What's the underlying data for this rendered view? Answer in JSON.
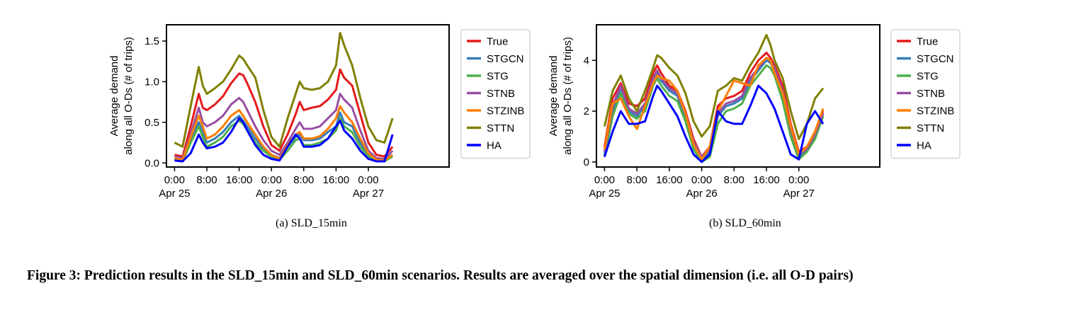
{
  "colors": {
    "True": "#e41a1c",
    "STGCN": "#377eb8",
    "STG": "#4daf4a",
    "STNB": "#984ea3",
    "STZINB": "#ff7f00",
    "STTN": "#808000",
    "HA": "#0000ff"
  },
  "chart_data": [
    {
      "type": "line",
      "caption": "(a)  SLD_15min",
      "ylabel_line1": "Average demand",
      "ylabel_line2": "along all O-Ds (# of trips)",
      "xlabel": "",
      "x_unit": "hours since Apr 25 0:00",
      "xlim": [
        -2,
        68
      ],
      "ylim": [
        -0.05,
        1.7
      ],
      "y_ticks": [
        0.0,
        0.5,
        1.0,
        1.5
      ],
      "y_tick_labels": [
        "0.0",
        "0.5",
        "1.0",
        "1.5"
      ],
      "x_ticks": [
        0,
        8,
        16,
        24,
        32,
        40,
        48
      ],
      "x_tick_labels": [
        "0:00\nApr 25",
        "8:00",
        "16:00",
        "0:00\nApr 26",
        "8:00",
        "16:00",
        "0:00\nApr 27"
      ],
      "grid": false,
      "legend_position": "outside-right",
      "x": [
        0,
        2,
        4,
        6,
        7,
        8,
        10,
        12,
        14,
        16,
        17,
        18,
        20,
        22,
        24,
        26,
        28,
        30,
        31,
        32,
        34,
        36,
        38,
        40,
        41,
        42,
        44,
        46,
        48,
        50,
        52,
        54
      ],
      "series": [
        {
          "name": "True",
          "values": [
            0.1,
            0.08,
            0.45,
            0.85,
            0.68,
            0.65,
            0.72,
            0.82,
            0.98,
            1.1,
            1.08,
            0.98,
            0.75,
            0.45,
            0.22,
            0.15,
            0.35,
            0.6,
            0.75,
            0.65,
            0.68,
            0.7,
            0.78,
            0.9,
            1.15,
            1.05,
            0.95,
            0.6,
            0.25,
            0.1,
            0.08,
            0.2
          ]
        },
        {
          "name": "STGCN",
          "values": [
            0.05,
            0.03,
            0.28,
            0.5,
            0.38,
            0.25,
            0.3,
            0.38,
            0.5,
            0.58,
            0.52,
            0.45,
            0.3,
            0.18,
            0.1,
            0.06,
            0.2,
            0.32,
            0.35,
            0.28,
            0.28,
            0.3,
            0.38,
            0.45,
            0.62,
            0.5,
            0.45,
            0.25,
            0.1,
            0.05,
            0.04,
            0.1
          ]
        },
        {
          "name": "STG",
          "values": [
            0.04,
            0.02,
            0.25,
            0.45,
            0.32,
            0.2,
            0.25,
            0.32,
            0.45,
            0.52,
            0.48,
            0.4,
            0.25,
            0.15,
            0.08,
            0.04,
            0.15,
            0.28,
            0.3,
            0.22,
            0.22,
            0.25,
            0.3,
            0.4,
            0.55,
            0.45,
            0.38,
            0.2,
            0.08,
            0.03,
            0.02,
            0.08
          ]
        },
        {
          "name": "STNB",
          "values": [
            0.08,
            0.06,
            0.35,
            0.68,
            0.5,
            0.45,
            0.5,
            0.58,
            0.72,
            0.8,
            0.75,
            0.65,
            0.45,
            0.28,
            0.15,
            0.1,
            0.25,
            0.42,
            0.5,
            0.42,
            0.42,
            0.45,
            0.55,
            0.65,
            0.85,
            0.78,
            0.68,
            0.4,
            0.15,
            0.06,
            0.05,
            0.15
          ]
        },
        {
          "name": "STZINB",
          "values": [
            0.06,
            0.04,
            0.32,
            0.58,
            0.45,
            0.3,
            0.35,
            0.45,
            0.58,
            0.65,
            0.58,
            0.5,
            0.35,
            0.2,
            0.1,
            0.05,
            0.22,
            0.35,
            0.38,
            0.3,
            0.3,
            0.33,
            0.42,
            0.55,
            0.7,
            0.62,
            0.5,
            0.3,
            0.12,
            0.04,
            0.03,
            0.1
          ]
        },
        {
          "name": "STTN",
          "values": [
            0.25,
            0.2,
            0.7,
            1.18,
            0.95,
            0.85,
            0.92,
            1.0,
            1.15,
            1.32,
            1.28,
            1.2,
            1.05,
            0.65,
            0.32,
            0.2,
            0.55,
            0.85,
            1.0,
            0.92,
            0.9,
            0.92,
            1.0,
            1.2,
            1.6,
            1.45,
            1.2,
            0.8,
            0.45,
            0.28,
            0.25,
            0.55
          ]
        },
        {
          "name": "HA",
          "values": [
            0.03,
            0.02,
            0.12,
            0.35,
            0.25,
            0.18,
            0.2,
            0.25,
            0.38,
            0.55,
            0.5,
            0.4,
            0.22,
            0.1,
            0.05,
            0.03,
            0.2,
            0.35,
            0.3,
            0.2,
            0.2,
            0.22,
            0.3,
            0.45,
            0.52,
            0.4,
            0.3,
            0.15,
            0.05,
            0.02,
            0.02,
            0.35
          ]
        }
      ]
    },
    {
      "type": "line",
      "caption": "(b)  SLD_60min",
      "ylabel_line1": "Average demand",
      "ylabel_line2": "along all O-Ds (# of trips)",
      "xlabel": "",
      "x_unit": "hours since Apr 25 0:00",
      "xlim": [
        -2,
        68
      ],
      "ylim": [
        -0.2,
        5.4
      ],
      "y_ticks": [
        0,
        2,
        4
      ],
      "y_tick_labels": [
        "0",
        "2",
        "4"
      ],
      "x_ticks": [
        0,
        8,
        16,
        24,
        32,
        40,
        48
      ],
      "x_tick_labels": [
        "0:00\nApr 25",
        "8:00",
        "16:00",
        "0:00\nApr 26",
        "8:00",
        "16:00",
        "0:00\nApr 27"
      ],
      "grid": false,
      "legend_position": "outside-right",
      "x": [
        0,
        2,
        4,
        6,
        8,
        10,
        12,
        13,
        14,
        16,
        18,
        20,
        22,
        24,
        26,
        28,
        30,
        32,
        34,
        36,
        38,
        40,
        41,
        42,
        44,
        46,
        48,
        50,
        52,
        54
      ],
      "series": [
        {
          "name": "True",
          "values": [
            0.6,
            2.5,
            3.1,
            2.3,
            2.2,
            2.5,
            3.5,
            3.8,
            3.5,
            3.0,
            2.8,
            2.0,
            0.9,
            0.2,
            0.6,
            2.2,
            2.5,
            2.6,
            2.8,
            3.5,
            4.0,
            4.3,
            4.1,
            3.8,
            3.0,
            1.5,
            0.4,
            0.6,
            1.2,
            2.0
          ]
        },
        {
          "name": "STGCN",
          "values": [
            0.3,
            2.0,
            2.9,
            2.0,
            1.8,
            2.2,
            3.2,
            3.5,
            3.2,
            2.8,
            2.6,
            1.8,
            0.7,
            0.1,
            0.4,
            1.8,
            2.2,
            2.3,
            2.5,
            3.2,
            3.6,
            4.0,
            3.9,
            3.6,
            2.6,
            1.2,
            0.2,
            0.5,
            1.0,
            1.9
          ]
        },
        {
          "name": "STG",
          "values": [
            0.2,
            1.8,
            2.7,
            1.9,
            1.7,
            2.0,
            3.0,
            3.3,
            3.0,
            2.6,
            2.4,
            1.6,
            0.5,
            0.0,
            0.2,
            1.5,
            2.0,
            2.1,
            2.3,
            3.0,
            3.4,
            3.8,
            3.7,
            3.4,
            2.4,
            1.0,
            0.1,
            0.4,
            0.9,
            1.8
          ]
        },
        {
          "name": "STNB",
          "values": [
            0.4,
            2.2,
            3.0,
            2.1,
            1.9,
            2.3,
            3.3,
            3.6,
            3.3,
            2.9,
            2.7,
            1.9,
            0.8,
            0.2,
            0.5,
            1.9,
            2.3,
            2.4,
            2.6,
            3.3,
            3.7,
            4.1,
            4.0,
            3.7,
            2.8,
            1.3,
            0.3,
            0.5,
            1.1,
            1.9
          ]
        },
        {
          "name": "STZINB",
          "values": [
            0.5,
            2.3,
            2.5,
            1.8,
            1.3,
            2.2,
            3.1,
            3.4,
            3.3,
            3.2,
            2.8,
            1.9,
            0.7,
            0.1,
            0.6,
            2.0,
            2.6,
            3.2,
            3.1,
            3.0,
            3.8,
            4.1,
            4.0,
            3.5,
            2.7,
            1.4,
            0.3,
            0.6,
            1.2,
            2.1
          ]
        },
        {
          "name": "STTN",
          "values": [
            1.4,
            2.8,
            3.4,
            2.5,
            2.0,
            2.8,
            3.7,
            4.2,
            4.1,
            3.7,
            3.4,
            2.7,
            1.6,
            1.0,
            1.4,
            2.8,
            3.0,
            3.3,
            3.2,
            3.8,
            4.3,
            5.0,
            4.6,
            4.0,
            3.3,
            2.0,
            0.9,
            1.5,
            2.5,
            2.9
          ]
        },
        {
          "name": "HA",
          "values": [
            0.2,
            1.2,
            2.0,
            1.5,
            1.5,
            1.6,
            2.6,
            3.0,
            2.8,
            2.3,
            1.8,
            1.0,
            0.3,
            0.0,
            0.3,
            2.0,
            1.6,
            1.5,
            1.5,
            2.2,
            3.0,
            2.7,
            2.4,
            2.1,
            1.2,
            0.3,
            0.1,
            1.5,
            2.0,
            1.5
          ]
        }
      ]
    }
  ],
  "captions": {
    "main": "Figure 3: Prediction results in the SLD_15min and SLD_60min scenarios. Results are averaged over the spatial dimension (i.e. all O-D pairs)"
  }
}
